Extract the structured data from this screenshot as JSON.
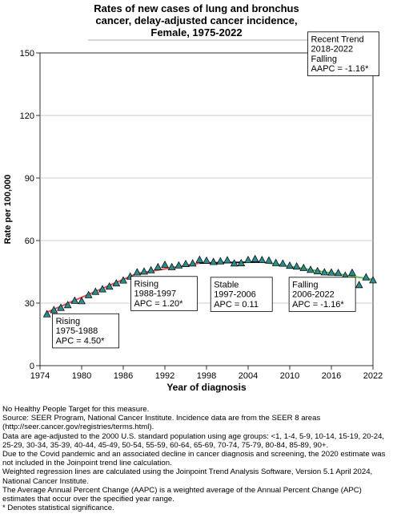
{
  "title_lines": [
    "Rates of new cases of lung and bronchus",
    "cancer, delay-adjusted cancer incidence,",
    "Female,  1975-2022"
  ],
  "chart_data": {
    "type": "scatter",
    "title": "Rates of new cases of lung and bronchus cancer, delay-adjusted cancer incidence, Female, 1975-2022",
    "xlabel": "Year of diagnosis",
    "ylabel": "Rate per 100,000",
    "xlim": [
      1974,
      2022
    ],
    "ylim": [
      0,
      150
    ],
    "x_ticks": [
      1974,
      1980,
      1986,
      1992,
      1998,
      2004,
      2010,
      2016,
      2022
    ],
    "y_ticks": [
      0,
      30,
      60,
      90,
      120,
      150
    ],
    "grid": "horizontal",
    "observed": {
      "x": [
        1975,
        1976,
        1977,
        1978,
        1979,
        1980,
        1981,
        1982,
        1983,
        1984,
        1985,
        1986,
        1987,
        1988,
        1989,
        1990,
        1991,
        1992,
        1993,
        1994,
        1995,
        1996,
        1997,
        1998,
        1999,
        2000,
        2001,
        2002,
        2003,
        2004,
        2005,
        2006,
        2007,
        2008,
        2009,
        2010,
        2011,
        2012,
        2013,
        2014,
        2015,
        2016,
        2017,
        2018,
        2019,
        2020,
        2021,
        2022
      ],
      "y": [
        24.5,
        26.5,
        27.6,
        28.9,
        31.0,
        30.8,
        33.7,
        35.3,
        36.5,
        37.8,
        39.3,
        40.7,
        42.6,
        44.6,
        45.0,
        45.6,
        47.1,
        48.2,
        47.1,
        47.9,
        48.6,
        48.9,
        50.6,
        50.2,
        49.6,
        49.9,
        50.4,
        48.9,
        49.0,
        50.5,
        51.0,
        50.5,
        50.3,
        49.1,
        48.8,
        47.8,
        47.4,
        46.7,
        45.8,
        45.2,
        44.6,
        44.5,
        44.3,
        43.0,
        44.4,
        38.5,
        42.2,
        40.8
      ]
    },
    "segments": [
      {
        "start": 1975,
        "end": 1988,
        "y_start": 25.6,
        "y_end": 44.2,
        "color": "#e05050"
      },
      {
        "start": 1988,
        "end": 1997,
        "y_start": 44.2,
        "y_end": 49.2,
        "color": "#e05050"
      },
      {
        "start": 1997,
        "end": 2006,
        "y_start": 49.2,
        "y_end": 49.7,
        "color": "#111111"
      },
      {
        "start": 2006,
        "end": 2022,
        "y_start": 49.7,
        "y_end": 41.3,
        "color": "#66bb55"
      }
    ],
    "marker_color": "#2e8b8b",
    "annotations": [
      {
        "anchor_year": 1975.8,
        "anchor_rate": 8.5,
        "lines": [
          "Rising",
          "1975-1988",
          "APC =  4.50*"
        ]
      },
      {
        "anchor_year": 1987.1,
        "anchor_rate": 26.4,
        "lines": [
          "Rising",
          "1988-1997",
          "APC =  1.20*"
        ]
      },
      {
        "anchor_year": 1998.6,
        "anchor_rate": 26.0,
        "lines": [
          "Stable",
          "1997-2006",
          "APC =  0.11"
        ]
      },
      {
        "anchor_year": 2009.9,
        "anchor_rate": 26.0,
        "lines": [
          "Falling",
          "2006-2022",
          "APC = -1.16*"
        ]
      },
      {
        "anchor_year": 2012.6,
        "anchor_rate": 139.0,
        "lines": [
          "Recent Trend",
          "2018-2022",
          "Falling",
          "AAPC = -1.16*"
        ]
      }
    ]
  },
  "footnotes": [
    "No Healthy People Target for this measure.",
    "Source: SEER Program, National Cancer Institute. Incidence data are from the SEER 8 areas (http://seer.cancer.gov/registries/terms.html).",
    "Data are age-adjusted to the 2000 U.S. standard population using age groups: <1, 1-4, 5-9, 10-14, 15-19, 20-24, 25-29, 30-34, 35-39, 40-44, 45-49, 50-54, 55-59, 60-64, 65-69, 70-74, 75-79, 80-84, 85-89, 90+.",
    "Due to the Covid pandemic and an associated decline in cancer diagnosis and screening, the 2020 estimate was not included in the Joinpoint trend line calculation.",
    "Weighted regression lines are calculated using the Joinpoint Trend Analysis Software, Version 5.1 April 2024, National Cancer Institute.",
    "The Average Annual Percent Change (AAPC) is a weighted average of the Annual Percent Change (APC) estimates that occur over the specified year range.",
    "* Denotes statistical significance."
  ]
}
